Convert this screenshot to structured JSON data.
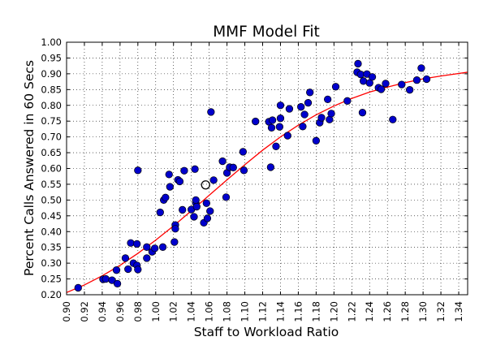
{
  "chart_data": {
    "type": "scatter",
    "title": "MMF Model Fit",
    "xlabel": "Staff to Workload Ratio",
    "ylabel": "Percent Calls Answered in 60 Secs",
    "xlim": [
      0.9,
      1.35
    ],
    "ylim": [
      0.2,
      1.0
    ],
    "x_ticks": [
      "0.90",
      "0.92",
      "0.94",
      "0.96",
      "0.98",
      "1.00",
      "1.02",
      "1.04",
      "1.06",
      "1.08",
      "1.10",
      "1.12",
      "1.14",
      "1.16",
      "1.18",
      "1.20",
      "1.22",
      "1.24",
      "1.26",
      "1.28",
      "1.30",
      "1.32",
      "1.34"
    ],
    "y_ticks": [
      "0.20",
      "0.25",
      "0.30",
      "0.35",
      "0.40",
      "0.45",
      "0.50",
      "0.55",
      "0.60",
      "0.65",
      "0.70",
      "0.75",
      "0.80",
      "0.85",
      "0.90",
      "0.95",
      "1.00"
    ],
    "grid": true,
    "legend": "none",
    "colors": {
      "points": "#0000cc",
      "point_edge": "#000000",
      "fit_line": "#ff0000",
      "highlight": "#000000"
    },
    "series": [
      {
        "kind": "points",
        "x": [
          0.913,
          0.941,
          0.944,
          0.951,
          0.956,
          0.957,
          0.966,
          0.969,
          0.972,
          0.975,
          0.979,
          0.979,
          0.98,
          0.98,
          0.99,
          0.99,
          0.996,
          0.999,
          1.005,
          1.008,
          1.009,
          1.011,
          1.015,
          1.016,
          1.021,
          1.022,
          1.022,
          1.025,
          1.027,
          1.03,
          1.032,
          1.04,
          1.043,
          1.044,
          1.045,
          1.045,
          1.046,
          1.054,
          1.057,
          1.058,
          1.061,
          1.062,
          1.065,
          1.075,
          1.079,
          1.08,
          1.083,
          1.087,
          1.098,
          1.099,
          1.112,
          1.127,
          1.129,
          1.13,
          1.131,
          1.135,
          1.139,
          1.14,
          1.14,
          1.148,
          1.15,
          1.163,
          1.165,
          1.167,
          1.171,
          1.173,
          1.18,
          1.184,
          1.186,
          1.193,
          1.195,
          1.197,
          1.202,
          1.215,
          1.226,
          1.227,
          1.23,
          1.232,
          1.233,
          1.237,
          1.24,
          1.243,
          1.25,
          1.253,
          1.258,
          1.266,
          1.276,
          1.285,
          1.293,
          1.298,
          1.304
        ],
        "y": [
          0.222,
          0.249,
          0.25,
          0.246,
          0.278,
          0.235,
          0.316,
          0.281,
          0.364,
          0.3,
          0.361,
          0.293,
          0.28,
          0.594,
          0.316,
          0.351,
          0.336,
          0.347,
          0.461,
          0.351,
          0.5,
          0.508,
          0.581,
          0.542,
          0.367,
          0.421,
          0.409,
          0.564,
          0.559,
          0.469,
          0.593,
          0.47,
          0.447,
          0.598,
          0.491,
          0.5,
          0.479,
          0.428,
          0.49,
          0.442,
          0.465,
          0.779,
          0.563,
          0.623,
          0.509,
          0.586,
          0.604,
          0.603,
          0.653,
          0.594,
          0.749,
          0.748,
          0.604,
          0.729,
          0.753,
          0.67,
          0.732,
          0.759,
          0.8,
          0.704,
          0.789,
          0.795,
          0.733,
          0.771,
          0.808,
          0.841,
          0.688,
          0.745,
          0.761,
          0.819,
          0.755,
          0.774,
          0.859,
          0.814,
          0.905,
          0.932,
          0.898,
          0.777,
          0.877,
          0.899,
          0.871,
          0.89,
          0.856,
          0.851,
          0.869,
          0.755,
          0.866,
          0.849,
          0.88,
          0.918,
          0.883
        ]
      },
      {
        "kind": "fit_curve",
        "x": [
          0.89,
          0.9,
          0.92,
          0.94,
          0.96,
          0.98,
          1.0,
          1.02,
          1.04,
          1.06,
          1.08,
          1.1,
          1.12,
          1.14,
          1.16,
          1.18,
          1.2,
          1.22,
          1.24,
          1.26,
          1.28,
          1.3,
          1.32,
          1.35
        ],
        "y": [
          0.195,
          0.207,
          0.231,
          0.26,
          0.293,
          0.331,
          0.373,
          0.418,
          0.466,
          0.515,
          0.564,
          0.612,
          0.658,
          0.7,
          0.737,
          0.77,
          0.798,
          0.822,
          0.842,
          0.858,
          0.872,
          0.884,
          0.893,
          0.905
        ]
      },
      {
        "kind": "highlight",
        "x": [
          1.056
        ],
        "y": [
          0.548
        ]
      }
    ]
  }
}
